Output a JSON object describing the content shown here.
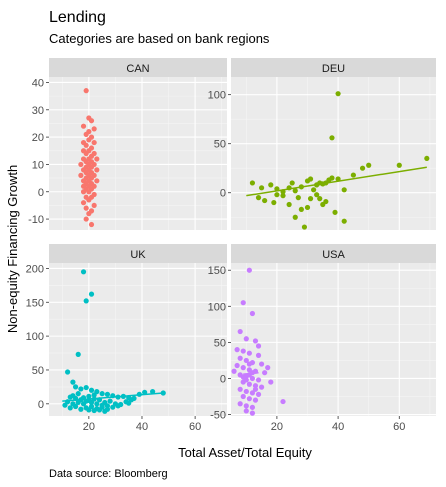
{
  "chart_data": {
    "type": "scatter",
    "title": "Lending",
    "subtitle": "Categories are based on bank regions",
    "caption": "Data source: Bloomberg",
    "xlabel": "Total Asset/Total Equity",
    "ylabel": "Non-equity Financing Growth",
    "xlim": [
      5,
      72
    ],
    "x_ticks": [
      20,
      40,
      60
    ],
    "grid": true,
    "facets": [
      {
        "name": "CAN",
        "color": "#F8766D",
        "ylim": [
          -14,
          42
        ],
        "y_ticks": [
          -10,
          0,
          10,
          20,
          30,
          40
        ],
        "trend": null,
        "points": [
          [
            19,
            37
          ],
          [
            20,
            27
          ],
          [
            21,
            26
          ],
          [
            18,
            24
          ],
          [
            22,
            23
          ],
          [
            20,
            22
          ],
          [
            19,
            21
          ],
          [
            21,
            20
          ],
          [
            20,
            19
          ],
          [
            18,
            18
          ],
          [
            22,
            18
          ],
          [
            19,
            17
          ],
          [
            21,
            16
          ],
          [
            20,
            15
          ],
          [
            18,
            15
          ],
          [
            22,
            14
          ],
          [
            19,
            14
          ],
          [
            21,
            13
          ],
          [
            20,
            12
          ],
          [
            18,
            12
          ],
          [
            23,
            12
          ],
          [
            19,
            11
          ],
          [
            21,
            11
          ],
          [
            20,
            10
          ],
          [
            17,
            10
          ],
          [
            22,
            10
          ],
          [
            19,
            9
          ],
          [
            21,
            9
          ],
          [
            20,
            8
          ],
          [
            18,
            8
          ],
          [
            23,
            8
          ],
          [
            19,
            7
          ],
          [
            21,
            7
          ],
          [
            20,
            6
          ],
          [
            17,
            6
          ],
          [
            22,
            6
          ],
          [
            19,
            5
          ],
          [
            21,
            5
          ],
          [
            20,
            4
          ],
          [
            18,
            4
          ],
          [
            23,
            4
          ],
          [
            19,
            3
          ],
          [
            21,
            3
          ],
          [
            20,
            2
          ],
          [
            18,
            2
          ],
          [
            22,
            2
          ],
          [
            19,
            1
          ],
          [
            21,
            1
          ],
          [
            20,
            0
          ],
          [
            18,
            0
          ],
          [
            22,
            -1
          ],
          [
            19,
            -2
          ],
          [
            21,
            -2
          ],
          [
            20,
            -3
          ],
          [
            18,
            -4
          ],
          [
            22,
            -5
          ],
          [
            19,
            -6
          ],
          [
            21,
            -7
          ],
          [
            20,
            -8
          ],
          [
            19,
            -10
          ],
          [
            21,
            -12
          ]
        ]
      },
      {
        "name": "DEU",
        "color": "#7CAE00",
        "ylim": [
          -38,
          118
        ],
        "y_ticks": [
          0,
          50,
          100
        ],
        "trend": {
          "x": [
            10,
            69
          ],
          "y": [
            -3,
            26
          ]
        },
        "points": [
          [
            40,
            101
          ],
          [
            38,
            56
          ],
          [
            69,
            35
          ],
          [
            60,
            28
          ],
          [
            12,
            10
          ],
          [
            15,
            5
          ],
          [
            18,
            8
          ],
          [
            20,
            4
          ],
          [
            22,
            -3
          ],
          [
            25,
            10
          ],
          [
            26,
            2
          ],
          [
            28,
            6
          ],
          [
            30,
            12
          ],
          [
            31,
            14
          ],
          [
            32,
            3
          ],
          [
            33,
            8
          ],
          [
            34,
            10
          ],
          [
            35,
            9
          ],
          [
            36,
            10
          ],
          [
            37,
            13
          ],
          [
            38,
            15
          ],
          [
            40,
            14
          ],
          [
            42,
            3
          ],
          [
            45,
            18
          ],
          [
            48,
            25
          ],
          [
            50,
            28
          ],
          [
            14,
            -5
          ],
          [
            16,
            -8
          ],
          [
            19,
            -10
          ],
          [
            24,
            -12
          ],
          [
            27,
            -5
          ],
          [
            30,
            -15
          ],
          [
            33,
            -2
          ],
          [
            36,
            -9
          ],
          [
            39,
            -20
          ],
          [
            42,
            -29
          ],
          [
            28,
            -17
          ],
          [
            22,
            1
          ],
          [
            20,
            -2
          ],
          [
            34,
            -6
          ],
          [
            26,
            -25
          ],
          [
            29,
            -35
          ],
          [
            35,
            -12
          ],
          [
            31,
            -6
          ],
          [
            24,
            5
          ]
        ]
      },
      {
        "name": "UK",
        "color": "#00BFC4",
        "ylim": [
          -18,
          208
        ],
        "y_ticks": [
          0,
          50,
          100,
          150,
          200
        ],
        "trend": {
          "x": [
            10,
            48
          ],
          "y": [
            4,
            16
          ]
        },
        "points": [
          [
            18,
            195
          ],
          [
            21,
            162
          ],
          [
            19,
            152
          ],
          [
            16,
            73
          ],
          [
            12,
            47
          ],
          [
            14,
            32
          ],
          [
            15,
            25
          ],
          [
            17,
            22
          ],
          [
            19,
            24
          ],
          [
            21,
            20
          ],
          [
            23,
            18
          ],
          [
            25,
            15
          ],
          [
            27,
            14
          ],
          [
            29,
            12
          ],
          [
            31,
            10
          ],
          [
            33,
            11
          ],
          [
            35,
            9
          ],
          [
            37,
            8
          ],
          [
            39,
            14
          ],
          [
            41,
            17
          ],
          [
            44,
            18
          ],
          [
            48,
            16
          ],
          [
            13,
            10
          ],
          [
            15,
            8
          ],
          [
            17,
            6
          ],
          [
            19,
            4
          ],
          [
            21,
            2
          ],
          [
            23,
            0
          ],
          [
            25,
            -2
          ],
          [
            27,
            -3
          ],
          [
            29,
            -5
          ],
          [
            15,
            -4
          ],
          [
            17,
            -8
          ],
          [
            19,
            -6
          ],
          [
            21,
            -4
          ],
          [
            23,
            -7
          ],
          [
            25,
            -5
          ],
          [
            27,
            -8
          ],
          [
            31,
            -3
          ],
          [
            35,
            1
          ],
          [
            12,
            3
          ],
          [
            14,
            12
          ],
          [
            16,
            15
          ],
          [
            18,
            9
          ],
          [
            20,
            11
          ],
          [
            22,
            13
          ],
          [
            24,
            6
          ],
          [
            26,
            2
          ],
          [
            28,
            4
          ],
          [
            30,
            0
          ],
          [
            32,
            -1
          ],
          [
            34,
            3
          ],
          [
            36,
            6
          ],
          [
            11,
            -2
          ],
          [
            13,
            -6
          ],
          [
            20,
            -9
          ],
          [
            22,
            -10
          ],
          [
            24,
            -9
          ],
          [
            26,
            -11
          ],
          [
            18,
            0
          ],
          [
            20,
            5
          ],
          [
            22,
            7
          ],
          [
            14,
            0
          ],
          [
            16,
            2
          ]
        ]
      },
      {
        "name": "USA",
        "color": "#C77CFF",
        "ylim": [
          -52,
          160
        ],
        "y_ticks": [
          -50,
          0,
          50,
          100,
          150
        ],
        "trend": {
          "x": [
            9,
            14
          ],
          "y": [
            6,
            8
          ]
        },
        "points": [
          [
            11,
            150
          ],
          [
            9,
            105
          ],
          [
            12,
            90
          ],
          [
            8,
            65
          ],
          [
            10,
            55
          ],
          [
            13,
            52
          ],
          [
            7,
            40
          ],
          [
            9,
            38
          ],
          [
            11,
            35
          ],
          [
            14,
            32
          ],
          [
            8,
            28
          ],
          [
            10,
            25
          ],
          [
            12,
            22
          ],
          [
            15,
            20
          ],
          [
            7,
            18
          ],
          [
            9,
            15
          ],
          [
            11,
            12
          ],
          [
            13,
            10
          ],
          [
            16,
            8
          ],
          [
            8,
            5
          ],
          [
            10,
            3
          ],
          [
            12,
            0
          ],
          [
            14,
            -2
          ],
          [
            9,
            -5
          ],
          [
            11,
            -8
          ],
          [
            13,
            -10
          ],
          [
            15,
            -12
          ],
          [
            8,
            -15
          ],
          [
            10,
            -18
          ],
          [
            12,
            -20
          ],
          [
            14,
            -22
          ],
          [
            9,
            -25
          ],
          [
            11,
            -28
          ],
          [
            13,
            -30
          ],
          [
            8,
            -35
          ],
          [
            10,
            -38
          ],
          [
            12,
            -40
          ],
          [
            22,
            -32
          ],
          [
            6,
            10
          ],
          [
            17,
            15
          ],
          [
            18,
            -5
          ],
          [
            11,
            5
          ],
          [
            10,
            -2
          ],
          [
            12,
            8
          ],
          [
            9,
            2
          ],
          [
            13,
            -15
          ],
          [
            11,
            20
          ],
          [
            14,
            45
          ],
          [
            10,
            -45
          ],
          [
            12,
            -48
          ]
        ]
      }
    ]
  }
}
